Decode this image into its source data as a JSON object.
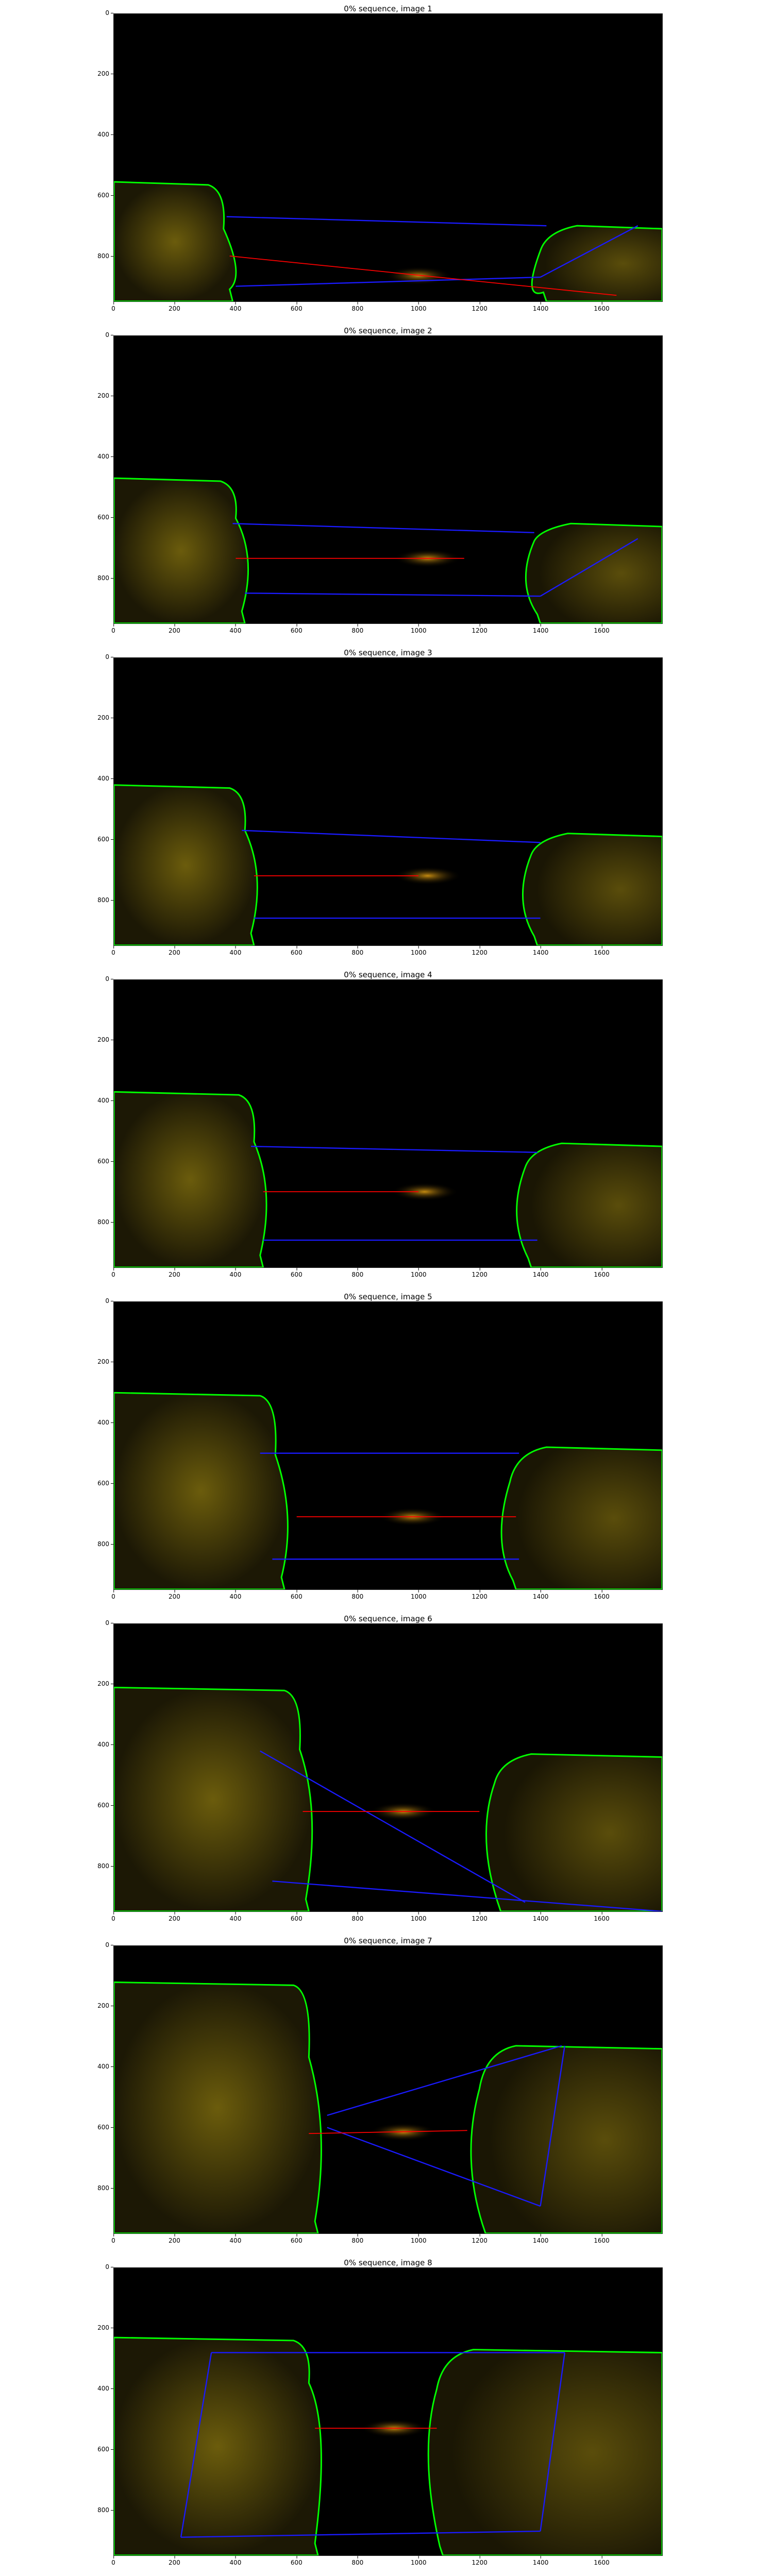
{
  "panels": [
    {
      "title": "0% sequence, image 1"
    },
    {
      "title": "0% sequence, image 2"
    },
    {
      "title": "0% sequence, image 3"
    },
    {
      "title": "0% sequence, image 4"
    },
    {
      "title": "0% sequence, image 5"
    },
    {
      "title": "0% sequence, image 6"
    },
    {
      "title": "0% sequence, image 7"
    },
    {
      "title": "0% sequence, image 8"
    }
  ],
  "axes": {
    "x_ticks": [
      "0",
      "200",
      "400",
      "600",
      "800",
      "1000",
      "1200",
      "1400",
      "1600"
    ],
    "y_ticks": [
      "0",
      "200",
      "400",
      "600",
      "800"
    ]
  },
  "colors": {
    "droplet": "#8a7a10",
    "contour": "#00ff00",
    "neck_lines": "#1a1aff",
    "gap_line": "#ff0000",
    "background": "#000000"
  }
}
